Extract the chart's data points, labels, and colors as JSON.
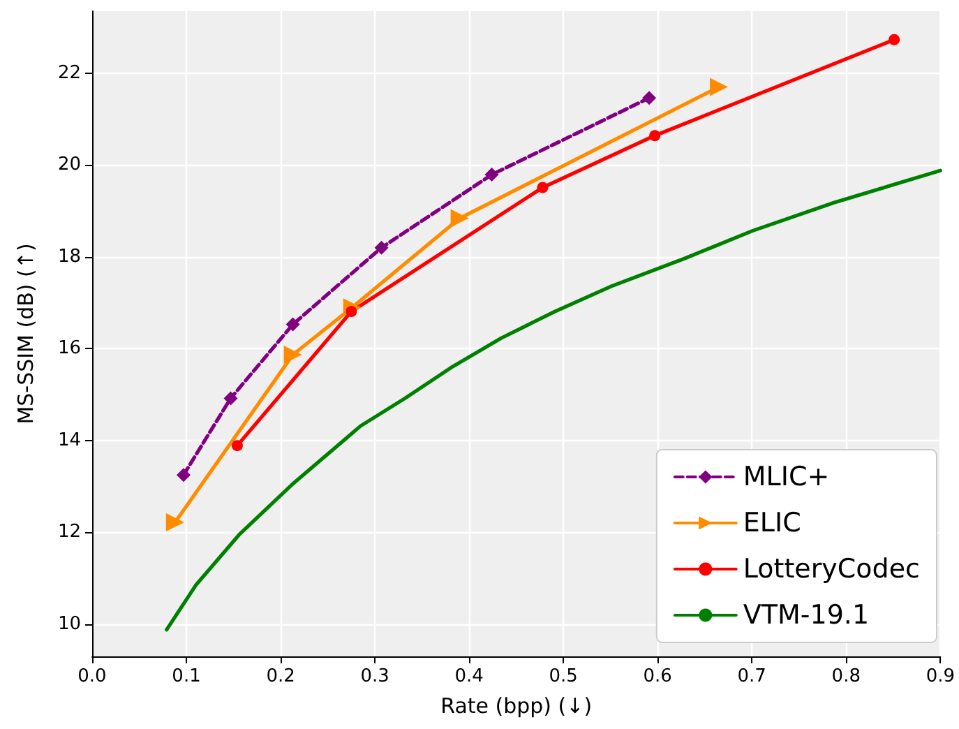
{
  "chart_data": {
    "type": "line",
    "xlabel": "Rate (bpp) (↓)",
    "ylabel": "MS-SSIM (dB) (↑)",
    "xlim": [
      0,
      0.9
    ],
    "xticks": [
      {
        "value": 0,
        "label": "0.0"
      },
      0.1,
      0.2,
      0.3,
      0.4,
      0.5,
      0.6,
      0.7,
      0.8,
      0.9
    ],
    "ylim": [
      9.3,
      23.35
    ],
    "yticks": [
      10,
      12,
      14,
      16,
      18,
      20,
      22
    ],
    "grid": true,
    "legend": "bottom right",
    "series": [
      {
        "name": "MLIC+",
        "color": "#800080",
        "marker": "diamond",
        "line_style": "dashed",
        "x": [
          0.097,
          0.147,
          0.213,
          0.307,
          0.424,
          0.591
        ],
        "values": [
          13.25,
          14.92,
          16.53,
          18.2,
          19.79,
          21.46
        ]
      },
      {
        "name": "ELIC",
        "color": "#ff8c00",
        "marker": "triangle",
        "line_style": "solid",
        "x": [
          0.088,
          0.213,
          0.276,
          0.39,
          0.665
        ],
        "values": [
          12.22,
          15.87,
          16.9,
          18.84,
          21.7
        ]
      },
      {
        "name": "LotteryCodec",
        "color": "#ff0000",
        "marker": "circle",
        "line_style": "solid",
        "x": [
          0.154,
          0.275,
          0.478,
          0.597,
          0.851
        ],
        "values": [
          13.89,
          16.81,
          19.51,
          20.64,
          22.73
        ]
      },
      {
        "name": "VTM-19.1",
        "color": "#008000",
        "marker": "none",
        "line_style": "solid",
        "x": [
          0.079,
          0.11,
          0.156,
          0.212,
          0.285,
          0.332,
          0.381,
          0.434,
          0.491,
          0.551,
          0.628,
          0.701,
          0.787,
          0.9
        ],
        "values": [
          9.88,
          10.85,
          11.95,
          13.04,
          14.32,
          14.92,
          15.59,
          16.23,
          16.81,
          17.36,
          17.96,
          18.57,
          19.18,
          19.88
        ]
      }
    ]
  }
}
